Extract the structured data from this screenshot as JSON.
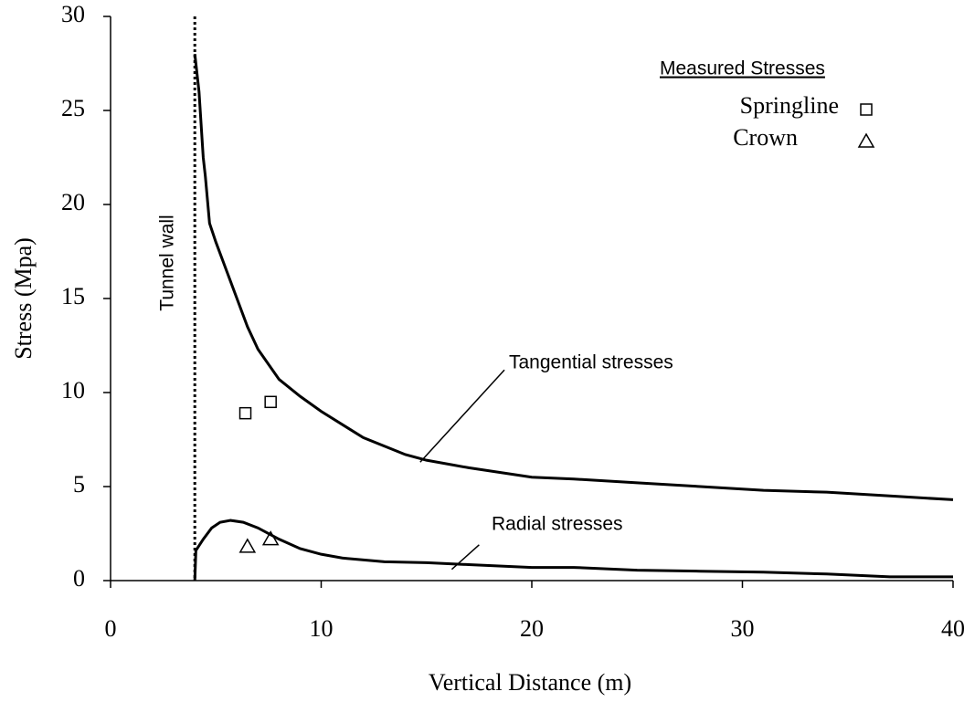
{
  "chart_data": {
    "type": "line",
    "x_label": "Vertical Distance (m)",
    "y_label": "Stress (Mpa)",
    "xlim": [
      0,
      40
    ],
    "xticks": [
      0,
      10,
      20,
      30,
      40
    ],
    "ylim": [
      0,
      30
    ],
    "yticks": [
      0,
      5,
      10,
      15,
      20,
      25,
      30
    ],
    "grid": false,
    "legend_title": "Measured Stresses",
    "legend_position": "upper right",
    "tunnel_wall": {
      "label": "Tunnel wall",
      "x": 4
    },
    "series": [
      {
        "name": "Tangential stresses",
        "kind": "line",
        "color": "#000000",
        "x": [
          4.0,
          4.2,
          4.4,
          4.5,
          4.7,
          5,
          5.5,
          6,
          6.5,
          7,
          8,
          9,
          10,
          12,
          14,
          15,
          17,
          20,
          22,
          25,
          28,
          31,
          34,
          37,
          40
        ],
        "values": [
          28,
          26,
          22.5,
          21.5,
          19,
          18,
          16.5,
          15,
          13.5,
          12.3,
          10.7,
          9.8,
          9,
          7.6,
          6.7,
          6.4,
          6,
          5.5,
          5.4,
          5.2,
          5.0,
          4.8,
          4.7,
          4.5,
          4.3
        ]
      },
      {
        "name": "Radial stresses",
        "kind": "line",
        "color": "#000000",
        "x": [
          4.0,
          4.05,
          4.4,
          4.8,
          5.2,
          5.7,
          6.3,
          7,
          8,
          9,
          10,
          11,
          13,
          15,
          17,
          20,
          22,
          25,
          28,
          31,
          34,
          37,
          40
        ],
        "values": [
          0,
          1.6,
          2.2,
          2.8,
          3.1,
          3.2,
          3.1,
          2.8,
          2.2,
          1.7,
          1.4,
          1.2,
          1.0,
          0.95,
          0.85,
          0.7,
          0.7,
          0.55,
          0.5,
          0.45,
          0.35,
          0.2,
          0.2
        ]
      },
      {
        "name": "Springline",
        "kind": "square",
        "color": "#000000",
        "x": [
          6.4,
          7.6
        ],
        "values": [
          8.9,
          9.5
        ]
      },
      {
        "name": "Crown",
        "kind": "triangle",
        "color": "#000000",
        "x": [
          6.5,
          7.6
        ],
        "values": [
          1.8,
          2.2
        ]
      }
    ]
  }
}
